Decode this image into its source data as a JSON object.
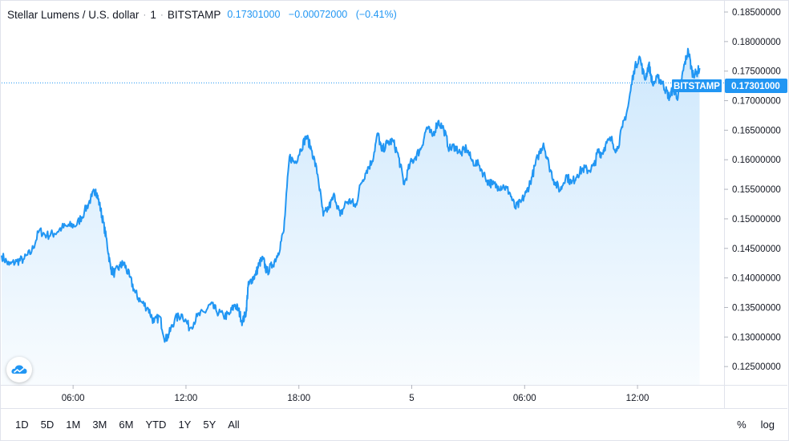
{
  "header": {
    "symbol_title": "Stellar Lumens / U.S. dollar",
    "interval": "1",
    "exchange": "BITSTAMP",
    "last_price": "0.17301000",
    "change": "−0.00072000",
    "change_pct": "(−0.41%)"
  },
  "price_tag": {
    "exchange_label": "BITSTAMP",
    "price_label": "0.17301000",
    "color": "#2196f3"
  },
  "toolbar": {
    "timeframes": [
      "1D",
      "5D",
      "1M",
      "3M",
      "6M",
      "YTD",
      "1Y",
      "5Y",
      "All"
    ],
    "percent_label": "%",
    "log_label": "log"
  },
  "chart_data": {
    "type": "area",
    "title": "Stellar Lumens / U.S. dollar",
    "xlabel": "",
    "ylabel": "",
    "x_ticks": [
      "06:00",
      "12:00",
      "18:00",
      "5",
      "06:00",
      "12:00"
    ],
    "x_tick_hours": [
      6,
      12,
      18,
      24,
      30,
      36
    ],
    "x_range_hours": [
      2.2,
      40.6
    ],
    "y_ticks": [
      "0.18500000",
      "0.18000000",
      "0.17500000",
      "0.17000000",
      "0.16500000",
      "0.16000000",
      "0.15500000",
      "0.15000000",
      "0.14500000",
      "0.14000000",
      "0.13500000",
      "0.13000000",
      "0.12500000"
    ],
    "ylim": [
      0.1219,
      0.1869
    ],
    "last_value": 0.17301,
    "grid": false,
    "line_color": "#2196f3",
    "series": [
      {
        "x_hours": [
          2.2,
          2.6,
          3.0,
          3.4,
          3.8,
          4.2,
          4.6,
          5.0,
          5.4,
          5.8,
          6.2,
          6.6,
          7.0,
          7.2,
          7.4,
          7.6,
          7.8,
          8.0,
          8.2,
          8.5,
          8.7,
          9.0,
          9.3,
          9.6,
          10.0,
          10.3,
          10.6,
          10.9,
          11.1,
          11.4,
          11.8,
          12.2,
          12.6,
          13.0,
          13.3,
          13.6,
          14.0,
          14.3,
          14.6,
          14.8,
          15.0,
          15.2,
          15.3,
          15.5,
          15.7,
          15.9,
          16.1,
          16.3,
          16.6,
          16.9,
          17.2,
          17.5,
          17.8,
          18.1,
          18.4,
          18.7,
          19.0,
          19.3,
          19.6,
          19.9,
          20.2,
          20.5,
          20.8,
          21.0,
          21.3,
          21.6,
          21.9,
          22.2,
          22.4,
          22.7,
          23.0,
          23.3,
          23.6,
          23.9,
          24.2,
          24.5,
          24.8,
          25.1,
          25.4,
          25.7,
          26.0,
          26.3,
          26.6,
          26.9,
          27.2,
          27.6,
          28.0,
          28.3,
          28.6,
          28.9,
          29.2,
          29.5,
          29.8,
          30.1,
          30.4,
          30.7,
          31.0,
          31.3,
          31.6,
          31.9,
          32.2,
          32.5,
          32.8,
          33.1,
          33.4,
          33.7,
          33.9,
          34.1,
          34.3,
          34.6,
          34.9,
          35.2,
          35.5,
          35.8,
          36.1,
          36.4,
          36.6,
          36.8,
          37.1,
          37.3,
          37.5,
          37.7,
          37.9,
          38.1,
          38.3,
          38.5,
          38.7,
          38.9,
          39.1,
          39.3
        ],
        "values": [
          0.1438,
          0.1422,
          0.1428,
          0.1432,
          0.1445,
          0.148,
          0.1472,
          0.1475,
          0.1485,
          0.1488,
          0.149,
          0.1512,
          0.1538,
          0.155,
          0.1525,
          0.1495,
          0.146,
          0.1415,
          0.1408,
          0.142,
          0.1425,
          0.1402,
          0.1375,
          0.136,
          0.1348,
          0.1325,
          0.1335,
          0.1295,
          0.1305,
          0.133,
          0.1338,
          0.1315,
          0.1335,
          0.1342,
          0.1355,
          0.1345,
          0.1335,
          0.1338,
          0.1355,
          0.1345,
          0.1325,
          0.1343,
          0.1385,
          0.1398,
          0.1405,
          0.1425,
          0.1432,
          0.141,
          0.1422,
          0.1442,
          0.148,
          0.1605,
          0.1595,
          0.1618,
          0.164,
          0.1615,
          0.1575,
          0.1505,
          0.152,
          0.154,
          0.1505,
          0.1528,
          0.153,
          0.152,
          0.156,
          0.1582,
          0.1598,
          0.1645,
          0.1615,
          0.1628,
          0.1632,
          0.1605,
          0.1558,
          0.1592,
          0.1605,
          0.162,
          0.1655,
          0.164,
          0.1665,
          0.1652,
          0.1618,
          0.1623,
          0.161,
          0.162,
          0.1598,
          0.159,
          0.1565,
          0.1558,
          0.1555,
          0.1555,
          0.1545,
          0.1518,
          0.1528,
          0.1545,
          0.1572,
          0.1605,
          0.1628,
          0.159,
          0.1562,
          0.1548,
          0.1574,
          0.156,
          0.1575,
          0.1585,
          0.1582,
          0.159,
          0.1615,
          0.161,
          0.1625,
          0.1635,
          0.1615,
          0.1655,
          0.169,
          0.175,
          0.1775,
          0.1735,
          0.1762,
          0.1728,
          0.1738,
          0.1732,
          0.1718,
          0.1705,
          0.1722,
          0.1705,
          0.1728,
          0.1762,
          0.1785,
          0.1748,
          0.1745,
          0.1755
        ]
      }
    ]
  }
}
